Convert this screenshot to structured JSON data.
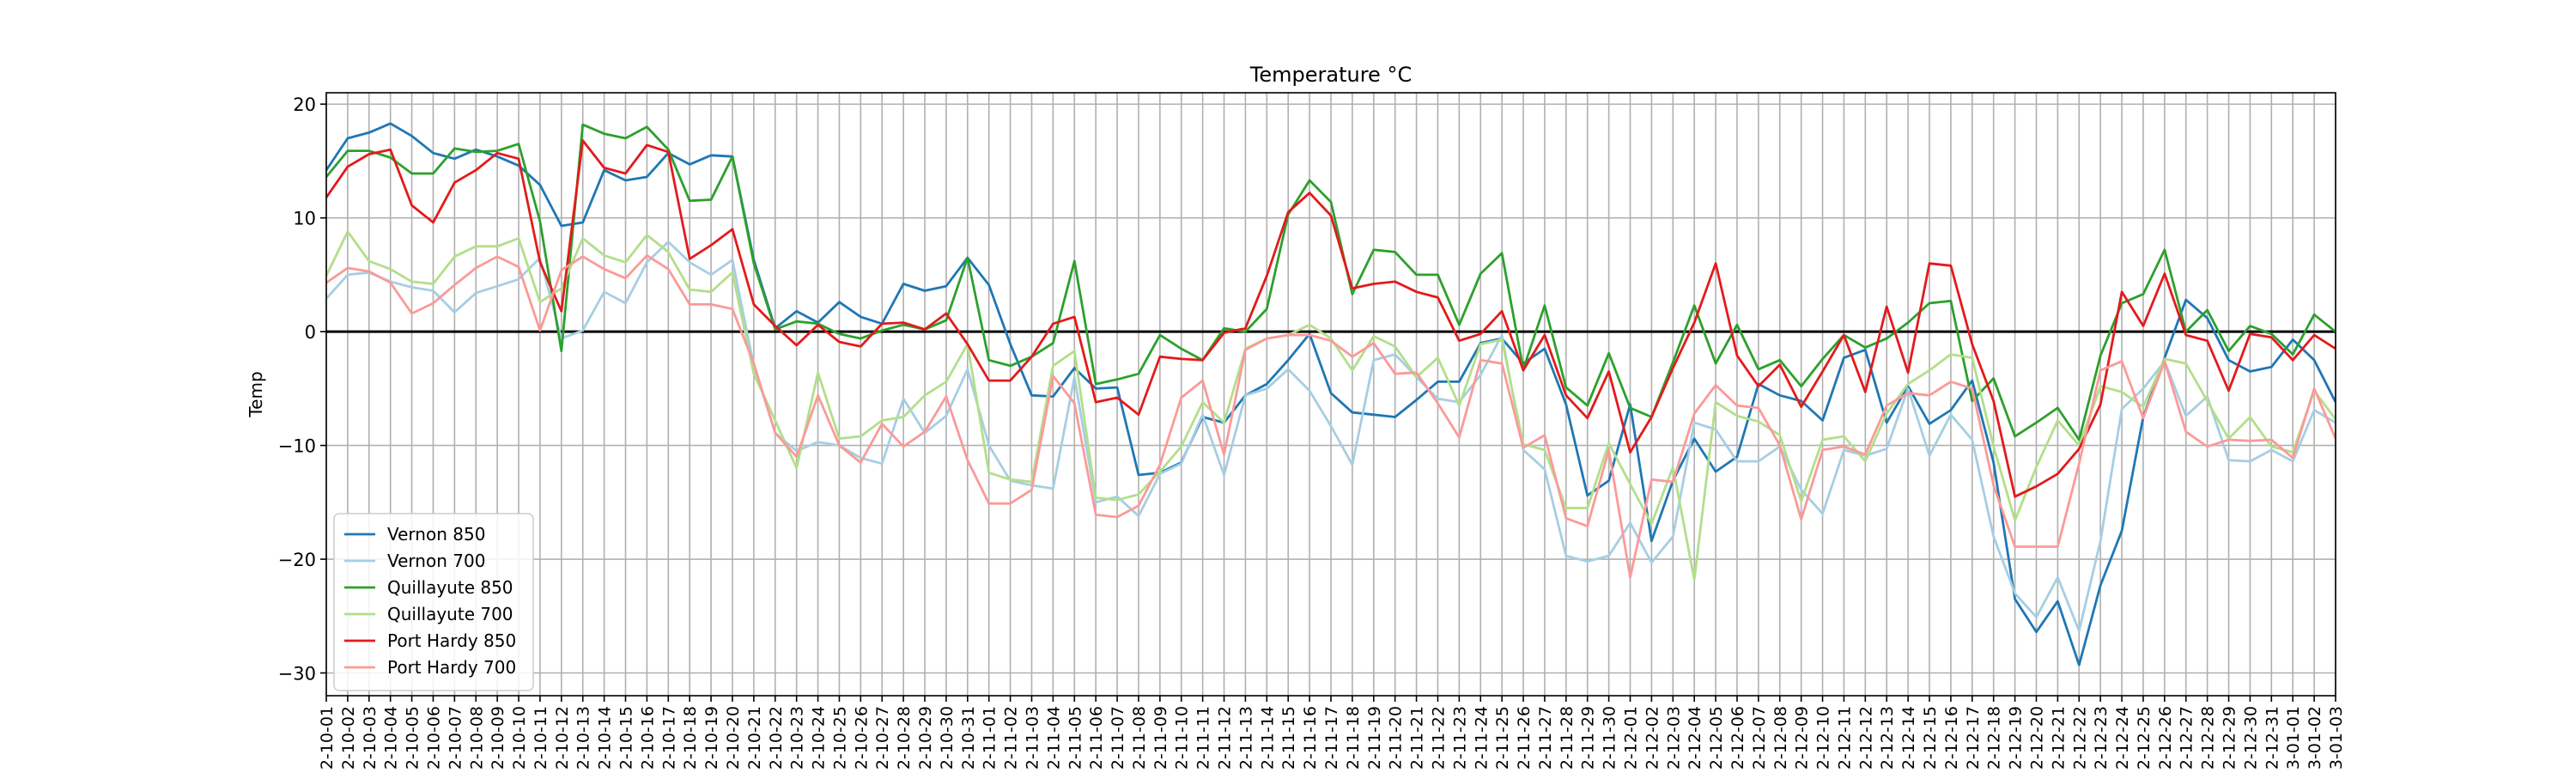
{
  "chart_data": {
    "type": "line",
    "title": "Temperature °C",
    "xlabel": "",
    "ylabel": "Temp",
    "ylim": [
      -32,
      21
    ],
    "yticks": [
      -30,
      -20,
      -10,
      0,
      10,
      20
    ],
    "ytick_labels": [
      "−30",
      "−20",
      "−10",
      "0",
      "10",
      "20"
    ],
    "grid": true,
    "zero_line": 0,
    "legend_position": "lower-left",
    "x_tick_labels": [
      "2-10-01",
      "2-10-02",
      "2-10-03",
      "2-10-04",
      "2-10-05",
      "2-10-06",
      "2-10-07",
      "2-10-08",
      "2-10-09",
      "2-10-10",
      "2-10-11",
      "2-10-12",
      "2-10-13",
      "2-10-14",
      "2-10-15",
      "2-10-16",
      "2-10-17",
      "2-10-18",
      "2-10-19",
      "2-10-20",
      "2-10-21",
      "2-10-22",
      "2-10-23",
      "2-10-24",
      "2-10-25",
      "2-10-26",
      "2-10-27",
      "2-10-28",
      "2-10-29",
      "2-10-30",
      "2-10-31",
      "2-11-01",
      "2-11-02",
      "2-11-03",
      "2-11-04",
      "2-11-05",
      "2-11-06",
      "2-11-07",
      "2-11-08",
      "2-11-09",
      "2-11-10",
      "2-11-11",
      "2-11-12",
      "2-11-13",
      "2-11-14",
      "2-11-15",
      "2-11-16",
      "2-11-17",
      "2-11-18",
      "2-11-19",
      "2-11-20",
      "2-11-21",
      "2-11-22",
      "2-11-23",
      "2-11-24",
      "2-11-25",
      "2-11-26",
      "2-11-27",
      "2-11-28",
      "2-11-29",
      "2-11-30",
      "2-12-01",
      "2-12-02",
      "2-12-03",
      "2-12-04",
      "2-12-05",
      "2-12-06",
      "2-12-07",
      "2-12-08",
      "2-12-09",
      "2-12-10",
      "2-12-11",
      "2-12-12",
      "2-12-13",
      "2-12-14",
      "2-12-15",
      "2-12-16",
      "2-12-17",
      "2-12-18",
      "2-12-19",
      "2-12-20",
      "2-12-21",
      "2-12-22",
      "2-12-23",
      "2-12-24",
      "2-12-25",
      "2-12-26",
      "2-12-27",
      "2-12-28",
      "2-12-29",
      "2-12-30",
      "2-12-31",
      "3-01-01",
      "3-01-02",
      "3-01-03"
    ],
    "series": [
      {
        "name": "Vernon 850",
        "color": "#1f77b4",
        "values": [
          14.2,
          17.0,
          17.5,
          18.3,
          17.2,
          15.7,
          15.2,
          16.0,
          15.4,
          14.6,
          12.9,
          9.3,
          9.6,
          14.2,
          13.3,
          13.6,
          15.7,
          14.7,
          15.5,
          15.4,
          6.3,
          0.3,
          1.8,
          0.8,
          2.6,
          1.3,
          0.7,
          4.2,
          3.6,
          4.0,
          6.5,
          4.1,
          -1.1,
          -5.6,
          -5.7,
          -3.2,
          -5.0,
          -4.9,
          -12.6,
          -12.4,
          -11.5,
          -7.5,
          -8.0,
          -5.6,
          -4.6,
          -2.5,
          -0.2,
          -5.4,
          -7.1,
          -7.3,
          -7.5,
          -6.0,
          -4.4,
          -4.4,
          -1.0,
          -0.6,
          -2.8,
          -1.5,
          -6.4,
          -14.4,
          -13.1,
          -6.4,
          -18.4,
          -13.1,
          -9.4,
          -12.3,
          -11.0,
          -4.6,
          -5.6,
          -6.1,
          -7.8,
          -2.3,
          -1.6,
          -8.0,
          -4.8,
          -8.1,
          -6.9,
          -4.3,
          -11.5,
          -23.5,
          -26.4,
          -23.7,
          -29.3,
          -22.3,
          -17.5,
          -7.5,
          -2.3,
          2.8,
          1.2,
          -2.5,
          -3.5,
          -3.1,
          -0.7,
          -2.5,
          -6.2
        ]
      },
      {
        "name": "Vernon 700",
        "color": "#a6cee3",
        "values": [
          2.9,
          5.0,
          5.2,
          4.4,
          3.9,
          3.6,
          1.7,
          3.4,
          4.0,
          4.6,
          6.5,
          -0.6,
          0.1,
          3.5,
          2.5,
          6.1,
          7.9,
          6.1,
          5.0,
          6.3,
          -3.0,
          -8.9,
          -10.5,
          -9.7,
          -10.0,
          -11.1,
          -11.6,
          -5.9,
          -8.9,
          -7.4,
          -3.3,
          -10.0,
          -13.1,
          -13.5,
          -13.8,
          -4.0,
          -15.0,
          -14.5,
          -16.2,
          -12.5,
          -11.6,
          -7.3,
          -12.6,
          -5.6,
          -5.0,
          -3.3,
          -5.2,
          -8.3,
          -11.7,
          -2.5,
          -2.0,
          -4.0,
          -5.9,
          -6.2,
          -3.8,
          -0.3,
          -10.4,
          -12.1,
          -19.7,
          -20.2,
          -19.7,
          -16.8,
          -20.3,
          -18.0,
          -8.0,
          -8.6,
          -11.4,
          -11.4,
          -10.1,
          -13.9,
          -16.0,
          -10.4,
          -10.9,
          -10.3,
          -5.0,
          -10.9,
          -7.3,
          -9.5,
          -18.0,
          -23.0,
          -25.1,
          -21.6,
          -26.3,
          -18.4,
          -6.8,
          -5.0,
          -2.6,
          -7.4,
          -5.7,
          -11.3,
          -11.4,
          -10.4,
          -11.4,
          -6.9,
          -8.0
        ]
      },
      {
        "name": "Quillayute 850",
        "color": "#2ca02c",
        "values": [
          13.6,
          15.9,
          15.9,
          15.3,
          13.9,
          13.9,
          16.1,
          15.8,
          15.9,
          16.5,
          9.7,
          -1.7,
          18.2,
          17.4,
          17.0,
          18.0,
          16.0,
          11.5,
          11.6,
          15.4,
          6.0,
          0.2,
          0.9,
          0.7,
          -0.2,
          -0.6,
          0.1,
          0.6,
          0.2,
          1.0,
          6.5,
          -2.5,
          -3.0,
          -2.2,
          -1.0,
          6.2,
          -4.6,
          -4.2,
          -3.7,
          -0.3,
          -1.5,
          -2.5,
          0.3,
          0.0,
          2.0,
          10.3,
          13.3,
          11.4,
          3.3,
          7.2,
          7.0,
          5.0,
          5.0,
          0.6,
          5.1,
          6.9,
          -3.3,
          2.3,
          -4.9,
          -6.5,
          -1.9,
          -6.7,
          -7.5,
          -2.7,
          2.3,
          -2.8,
          0.6,
          -3.3,
          -2.5,
          -4.8,
          -2.4,
          -0.3,
          -1.4,
          -0.6,
          0.8,
          2.5,
          2.7,
          -6.1,
          -4.1,
          -9.2,
          -8.0,
          -6.7,
          -9.5,
          -2.1,
          2.5,
          3.3,
          7.2,
          0.0,
          1.9,
          -1.7,
          0.5,
          -0.2,
          -2.0,
          1.5,
          0.0
        ]
      },
      {
        "name": "Quillayute 700",
        "color": "#b2df8a",
        "values": [
          4.9,
          8.8,
          6.2,
          5.5,
          4.4,
          4.2,
          6.6,
          7.5,
          7.5,
          8.2,
          2.6,
          3.8,
          8.2,
          6.7,
          6.1,
          8.5,
          7.0,
          3.7,
          3.5,
          5.2,
          -3.7,
          -7.8,
          -12.0,
          -3.6,
          -9.4,
          -9.2,
          -7.8,
          -7.5,
          -5.6,
          -4.4,
          -1.1,
          -12.4,
          -13.0,
          -13.2,
          -3.0,
          -1.7,
          -14.6,
          -14.8,
          -14.3,
          -12.3,
          -10.1,
          -6.2,
          -8.0,
          -1.5,
          -0.6,
          -0.3,
          0.6,
          -0.6,
          -3.4,
          -0.4,
          -1.3,
          -4.0,
          -2.3,
          -6.5,
          -1.1,
          -0.7,
          -9.9,
          -10.4,
          -15.5,
          -15.5,
          -9.8,
          -13.4,
          -16.9,
          -11.9,
          -21.8,
          -6.2,
          -7.4,
          -7.9,
          -9.1,
          -14.9,
          -9.5,
          -9.2,
          -11.4,
          -7.2,
          -4.6,
          -3.4,
          -2.0,
          -2.3,
          -10.1,
          -16.6,
          -11.9,
          -7.8,
          -10.0,
          -4.8,
          -5.3,
          -6.6,
          -2.4,
          -2.8,
          -6.1,
          -9.4,
          -7.5,
          -10.1,
          -10.6,
          -5.2,
          -7.7
        ]
      },
      {
        "name": "Port Hardy 850",
        "color": "#e31a1c",
        "values": [
          11.8,
          14.5,
          15.6,
          16.0,
          11.1,
          9.6,
          13.1,
          14.2,
          15.7,
          15.2,
          6.1,
          1.8,
          16.8,
          14.4,
          13.9,
          16.4,
          15.8,
          6.4,
          7.6,
          9.0,
          2.4,
          0.5,
          -1.2,
          0.6,
          -0.9,
          -1.3,
          0.7,
          0.8,
          0.2,
          1.6,
          -1.1,
          -4.3,
          -4.3,
          -2.2,
          0.7,
          1.3,
          -6.2,
          -5.8,
          -7.3,
          -2.2,
          -2.4,
          -2.5,
          -0.1,
          0.3,
          4.9,
          10.5,
          12.2,
          10.2,
          3.8,
          4.2,
          4.4,
          3.5,
          3.0,
          -0.8,
          -0.2,
          1.8,
          -3.4,
          -0.3,
          -5.6,
          -7.6,
          -3.5,
          -10.6,
          -7.5,
          -3.2,
          0.8,
          6.0,
          -2.1,
          -4.8,
          -2.9,
          -6.6,
          -3.5,
          -0.3,
          -5.3,
          2.2,
          -3.6,
          6.0,
          5.8,
          -1.1,
          -6.1,
          -14.5,
          -13.6,
          -12.5,
          -10.3,
          -6.4,
          3.5,
          0.5,
          5.1,
          -0.3,
          -0.8,
          -5.2,
          -0.2,
          -0.5,
          -2.5,
          -0.3,
          -1.5
        ]
      },
      {
        "name": "Port Hardy 700",
        "color": "#fb9a99",
        "values": [
          4.3,
          5.6,
          5.3,
          4.3,
          1.6,
          2.5,
          4.1,
          5.6,
          6.6,
          5.7,
          0.1,
          5.4,
          6.6,
          5.5,
          4.7,
          6.7,
          5.5,
          2.4,
          2.4,
          2.0,
          -2.8,
          -8.9,
          -11.0,
          -5.6,
          -10.0,
          -11.5,
          -8.1,
          -10.1,
          -8.8,
          -5.7,
          -11.3,
          -15.1,
          -15.1,
          -13.9,
          -3.9,
          -6.3,
          -16.1,
          -16.3,
          -15.3,
          -11.7,
          -5.8,
          -4.3,
          -10.8,
          -1.6,
          -0.6,
          -0.3,
          -0.3,
          -0.8,
          -2.2,
          -1.0,
          -3.7,
          -3.6,
          -6.3,
          -9.3,
          -2.5,
          -2.8,
          -10.2,
          -9.1,
          -16.4,
          -17.1,
          -10.4,
          -21.6,
          -13.0,
          -13.2,
          -7.2,
          -4.7,
          -6.5,
          -6.7,
          -10.0,
          -16.5,
          -10.4,
          -10.1,
          -10.8,
          -6.5,
          -5.4,
          -5.6,
          -4.4,
          -5.0,
          -13.5,
          -18.9,
          -18.9,
          -18.9,
          -11.6,
          -3.4,
          -2.6,
          -7.6,
          -2.6,
          -8.8,
          -10.1,
          -9.5,
          -9.6,
          -9.5,
          -11.1,
          -5.0,
          -9.4
        ]
      }
    ]
  }
}
